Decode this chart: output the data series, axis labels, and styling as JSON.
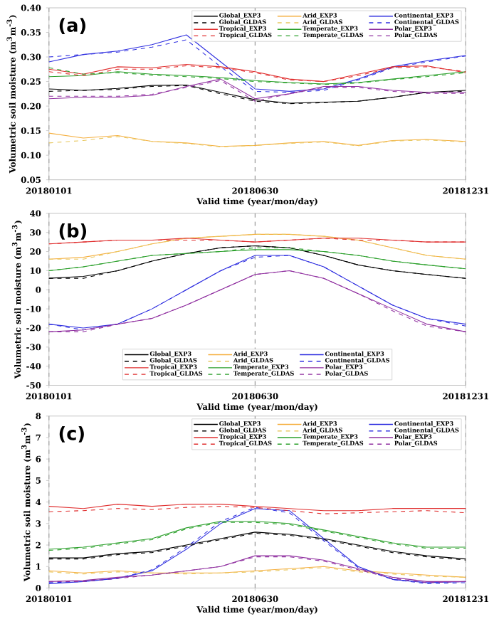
{
  "chart_data": [
    {
      "type": "line",
      "title": "(a)",
      "xlabel": "Valid time (year/mon/day)",
      "ylabel": "Volumetric soil moisture (m$^{3}$m$^{-3}$)",
      "x": [
        "2018-01-01",
        "2018-01-31",
        "2018-03-02",
        "2018-04-01",
        "2018-05-01",
        "2018-05-31",
        "2018-06-30",
        "2018-07-30",
        "2018-08-29",
        "2018-09-28",
        "2018-10-28",
        "2018-11-27",
        "2018-12-31"
      ],
      "xlim": [
        "2018-01-01",
        "2018-12-31"
      ],
      "xticks": [
        {
          "value": "2018-01-01",
          "label": "20180101"
        },
        {
          "value": "2018-06-30",
          "label": "20180630"
        },
        {
          "value": "2018-12-31",
          "label": "20181231"
        }
      ],
      "ylim": [
        0.05,
        0.4
      ],
      "yticks": [
        0.05,
        {
          "value": 0.1,
          "label": "0.10"
        },
        0.15,
        {
          "value": 0.2,
          "label": "0.20"
        },
        0.25,
        {
          "value": 0.3,
          "label": "0.30"
        },
        0.35,
        {
          "value": 0.4,
          "label": "0.40"
        }
      ],
      "legend": "top right",
      "grid": "x",
      "series": [
        {
          "name": "Global_EXP3",
          "color": "#000000",
          "line_style": "solid",
          "values": [
            0.235,
            0.232,
            0.236,
            0.242,
            0.243,
            0.228,
            0.213,
            0.206,
            0.208,
            0.21,
            0.218,
            0.228,
            0.232
          ]
        },
        {
          "name": "Global_GLDAS",
          "color": "#000000",
          "line_style": "dashed",
          "values": [
            0.23,
            0.232,
            0.234,
            0.24,
            0.242,
            0.225,
            0.21,
            0.205,
            0.207,
            0.21,
            0.218,
            0.228,
            0.23
          ]
        },
        {
          "name": "Tropical_EXP3",
          "color": "#e03030",
          "line_style": "solid",
          "values": [
            0.275,
            0.265,
            0.28,
            0.278,
            0.285,
            0.28,
            0.27,
            0.255,
            0.25,
            0.265,
            0.28,
            0.282,
            0.268
          ]
        },
        {
          "name": "Tropical_GLDAS",
          "color": "#e03030",
          "line_style": "dashed",
          "values": [
            0.27,
            0.262,
            0.275,
            0.275,
            0.282,
            0.278,
            0.268,
            0.253,
            0.25,
            0.262,
            0.278,
            0.28,
            0.27
          ]
        },
        {
          "name": "Arid_EXP3",
          "color": "#f5b041",
          "line_style": "solid",
          "values": [
            0.145,
            0.135,
            0.14,
            0.128,
            0.125,
            0.118,
            0.12,
            0.125,
            0.128,
            0.12,
            0.13,
            0.132,
            0.128
          ]
        },
        {
          "name": "Arid_GLDAS",
          "color": "#e8c860",
          "line_style": "dashed",
          "values": [
            0.125,
            0.13,
            0.138,
            0.128,
            0.124,
            0.117,
            0.12,
            0.124,
            0.127,
            0.119,
            0.129,
            0.131,
            0.127
          ]
        },
        {
          "name": "Temperate_EXP3",
          "color": "#2ca02c",
          "line_style": "solid",
          "values": [
            0.26,
            0.262,
            0.27,
            0.265,
            0.262,
            0.258,
            0.252,
            0.248,
            0.245,
            0.248,
            0.255,
            0.262,
            0.27
          ]
        },
        {
          "name": "Temperate_GLDAS",
          "color": "#2ca02c",
          "line_style": "dashed",
          "values": [
            0.278,
            0.265,
            0.268,
            0.263,
            0.26,
            0.256,
            0.25,
            0.247,
            0.244,
            0.247,
            0.254,
            0.26,
            0.268
          ]
        },
        {
          "name": "Continental_EXP3",
          "color": "#3030e0",
          "line_style": "solid",
          "values": [
            0.29,
            0.305,
            0.312,
            0.325,
            0.345,
            0.29,
            0.235,
            0.23,
            0.235,
            0.255,
            0.28,
            0.292,
            0.303
          ]
        },
        {
          "name": "Continental_GLDAS",
          "color": "#3030e0",
          "line_style": "dashed",
          "values": [
            0.3,
            0.305,
            0.31,
            0.32,
            0.335,
            0.28,
            0.23,
            0.228,
            0.232,
            0.253,
            0.278,
            0.29,
            0.302
          ]
        },
        {
          "name": "Polar_EXP3",
          "color": "#9030a0",
          "line_style": "solid",
          "values": [
            0.215,
            0.218,
            0.218,
            0.222,
            0.24,
            0.255,
            0.215,
            0.225,
            0.24,
            0.24,
            0.232,
            0.228,
            0.228
          ]
        },
        {
          "name": "Polar_GLDAS",
          "color": "#9030a0",
          "line_style": "dashed",
          "values": [
            0.22,
            0.22,
            0.22,
            0.224,
            0.238,
            0.252,
            0.21,
            0.225,
            0.238,
            0.238,
            0.23,
            0.226,
            0.226
          ]
        }
      ]
    },
    {
      "type": "line",
      "title": "(b)",
      "xlabel": "Valid time (year/mon/day)",
      "ylabel": "Volumetric soil moisture (m$^{3}$m$^{-3}$)",
      "x": [
        "2018-01-01",
        "2018-01-31",
        "2018-03-02",
        "2018-04-01",
        "2018-05-01",
        "2018-05-31",
        "2018-06-30",
        "2018-07-30",
        "2018-08-29",
        "2018-09-28",
        "2018-10-28",
        "2018-11-27",
        "2018-12-31"
      ],
      "xlim": [
        "2018-01-01",
        "2018-12-31"
      ],
      "xticks": [
        {
          "value": "2018-01-01",
          "label": "20180101"
        },
        {
          "value": "2018-06-30",
          "label": "20180630"
        },
        {
          "value": "2018-12-31",
          "label": "20181231"
        }
      ],
      "ylim": [
        -50,
        40
      ],
      "yticks": [
        -50,
        -40,
        -30,
        -20,
        -10,
        0,
        10,
        20,
        30,
        40
      ],
      "legend": "bottom",
      "grid": "x",
      "series": [
        {
          "name": "Global_EXP3",
          "color": "#000000",
          "line_style": "solid",
          "values": [
            6,
            7,
            10,
            15,
            19,
            22,
            23,
            22,
            18,
            13,
            10,
            8,
            6
          ]
        },
        {
          "name": "Global_GLDAS",
          "color": "#000000",
          "line_style": "dashed",
          "values": [
            6,
            6,
            10,
            15,
            19,
            22,
            23,
            22,
            18,
            13,
            10,
            8,
            6
          ]
        },
        {
          "name": "Tropical_EXP3",
          "color": "#e03030",
          "line_style": "solid",
          "values": [
            24,
            25,
            26,
            26,
            27,
            26,
            25,
            26,
            27,
            27,
            26,
            25,
            25
          ]
        },
        {
          "name": "Tropical_GLDAS",
          "color": "#e03030",
          "line_style": "dashed",
          "values": [
            24,
            25,
            26,
            26,
            26,
            26,
            25,
            26,
            27,
            26,
            26,
            25,
            25
          ]
        },
        {
          "name": "Arid_EXP3",
          "color": "#f5b041",
          "line_style": "solid",
          "values": [
            16,
            17,
            20,
            24,
            27,
            28,
            29,
            29,
            28,
            26,
            22,
            18,
            16
          ]
        },
        {
          "name": "Arid_GLDAS",
          "color": "#e8c860",
          "line_style": "dashed",
          "values": [
            16,
            16,
            20,
            24,
            27,
            28,
            29,
            29,
            28,
            26,
            22,
            18,
            16
          ]
        },
        {
          "name": "Temperate_EXP3",
          "color": "#2ca02c",
          "line_style": "solid",
          "values": [
            10,
            12,
            15,
            18,
            19,
            20,
            21,
            21,
            20,
            18,
            15,
            13,
            11
          ]
        },
        {
          "name": "Temperate_GLDAS",
          "color": "#2ca02c",
          "line_style": "dashed",
          "values": [
            10,
            12,
            15,
            18,
            19,
            20,
            22,
            22,
            20,
            18,
            15,
            13,
            11
          ]
        },
        {
          "name": "Continental_EXP3",
          "color": "#3030e0",
          "line_style": "solid",
          "values": [
            -18,
            -20,
            -18,
            -10,
            0,
            10,
            18,
            18,
            12,
            2,
            -8,
            -15,
            -18
          ]
        },
        {
          "name": "Continental_GLDAS",
          "color": "#3030e0",
          "line_style": "dashed",
          "values": [
            -18,
            -21,
            -18,
            -10,
            0,
            10,
            17,
            18,
            12,
            2,
            -8,
            -15,
            -19
          ]
        },
        {
          "name": "Polar_EXP3",
          "color": "#9030a0",
          "line_style": "solid",
          "values": [
            -22,
            -21,
            -18,
            -15,
            -8,
            0,
            8,
            10,
            6,
            -2,
            -10,
            -18,
            -22
          ]
        },
        {
          "name": "Polar_GLDAS",
          "color": "#9030a0",
          "line_style": "dashed",
          "values": [
            -22,
            -22,
            -18,
            -15,
            -8,
            0,
            8,
            10,
            6,
            -2,
            -11,
            -19,
            -22
          ]
        }
      ]
    },
    {
      "type": "line",
      "title": "(c)",
      "xlabel": "Valid time (year/mon/day)",
      "ylabel": "Volumetric soil moisture (m$^{3}$m$^{-3}$)",
      "x": [
        "2018-01-01",
        "2018-01-31",
        "2018-03-02",
        "2018-04-01",
        "2018-05-01",
        "2018-05-31",
        "2018-06-30",
        "2018-07-30",
        "2018-08-29",
        "2018-09-28",
        "2018-10-28",
        "2018-11-27",
        "2018-12-31"
      ],
      "xlim": [
        "2018-01-01",
        "2018-12-31"
      ],
      "xticks": [
        {
          "value": "2018-01-01",
          "label": "20180101"
        },
        {
          "value": "2018-06-30",
          "label": "20180630"
        },
        {
          "value": "2018-12-31",
          "label": "20181231"
        }
      ],
      "ylim": [
        0,
        8
      ],
      "yticks": [
        0,
        1,
        2,
        3,
        4,
        5,
        6,
        7,
        8
      ],
      "legend": "top right",
      "grid": "x",
      "series": [
        {
          "name": "Global_EXP3",
          "color": "#000000",
          "line_style": "solid",
          "values": [
            1.4,
            1.4,
            1.6,
            1.7,
            2.0,
            2.3,
            2.6,
            2.5,
            2.3,
            2.0,
            1.7,
            1.5,
            1.35
          ]
        },
        {
          "name": "Global_GLDAS",
          "color": "#000000",
          "line_style": "dashed",
          "values": [
            1.35,
            1.35,
            1.55,
            1.65,
            1.95,
            2.25,
            2.55,
            2.45,
            2.25,
            1.95,
            1.65,
            1.45,
            1.3
          ]
        },
        {
          "name": "Tropical_EXP3",
          "color": "#e03030",
          "line_style": "solid",
          "values": [
            3.8,
            3.7,
            3.9,
            3.8,
            3.9,
            3.9,
            3.8,
            3.7,
            3.6,
            3.6,
            3.7,
            3.7,
            3.7
          ]
        },
        {
          "name": "Tropical_GLDAS",
          "color": "#e03030",
          "line_style": "dashed",
          "values": [
            3.55,
            3.6,
            3.7,
            3.65,
            3.75,
            3.8,
            3.75,
            3.6,
            3.45,
            3.5,
            3.55,
            3.6,
            3.5
          ]
        },
        {
          "name": "Arid_EXP3",
          "color": "#f5b041",
          "line_style": "solid",
          "values": [
            0.8,
            0.7,
            0.8,
            0.7,
            0.7,
            0.7,
            0.8,
            0.9,
            1.0,
            0.8,
            0.7,
            0.6,
            0.5
          ]
        },
        {
          "name": "Arid_GLDAS",
          "color": "#e8c860",
          "line_style": "dashed",
          "values": [
            0.75,
            0.65,
            0.75,
            0.7,
            0.65,
            0.7,
            0.75,
            0.85,
            0.95,
            0.75,
            0.65,
            0.55,
            0.5
          ]
        },
        {
          "name": "Temperate_EXP3",
          "color": "#2ca02c",
          "line_style": "solid",
          "values": [
            1.8,
            1.9,
            2.1,
            2.3,
            2.8,
            3.1,
            3.1,
            3.0,
            2.7,
            2.4,
            2.1,
            1.9,
            1.9
          ]
        },
        {
          "name": "Temperate_GLDAS",
          "color": "#2ca02c",
          "line_style": "dashed",
          "values": [
            1.75,
            1.85,
            2.05,
            2.25,
            2.75,
            3.05,
            3.05,
            2.95,
            2.65,
            2.35,
            2.05,
            1.85,
            1.85
          ]
        },
        {
          "name": "Continental_EXP3",
          "color": "#3030e0",
          "line_style": "solid",
          "values": [
            0.2,
            0.3,
            0.45,
            0.8,
            1.8,
            3.0,
            3.7,
            3.6,
            2.3,
            1.0,
            0.4,
            0.25,
            0.3
          ]
        },
        {
          "name": "Continental_GLDAS",
          "color": "#3030e0",
          "line_style": "dashed",
          "values": [
            0.25,
            0.3,
            0.45,
            0.85,
            1.9,
            3.1,
            3.75,
            3.5,
            2.2,
            0.95,
            0.4,
            0.2,
            0.25
          ]
        },
        {
          "name": "Polar_EXP3",
          "color": "#9030a0",
          "line_style": "solid",
          "values": [
            0.3,
            0.35,
            0.5,
            0.6,
            0.8,
            1.0,
            1.5,
            1.5,
            1.3,
            0.9,
            0.5,
            0.3,
            0.3
          ]
        },
        {
          "name": "Polar_GLDAS",
          "color": "#9030a0",
          "line_style": "dashed",
          "values": [
            0.3,
            0.3,
            0.45,
            0.6,
            0.8,
            1.0,
            1.45,
            1.45,
            1.25,
            0.85,
            0.45,
            0.25,
            0.3
          ]
        }
      ]
    }
  ]
}
